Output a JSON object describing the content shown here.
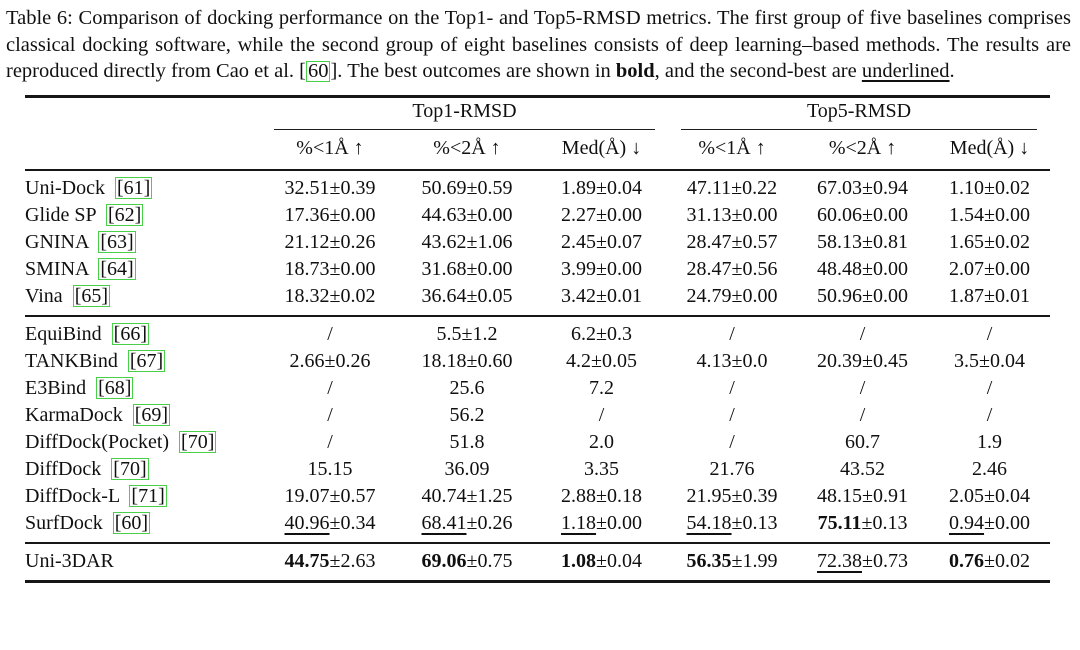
{
  "caption": {
    "part1": "Table 6: Comparison of docking performance on the Top1- and Top5-RMSD metrics. The first group of five baselines comprises classical docking software, while the second group of eight baselines consists of deep learning–based methods. The results are reproduced directly from Cao et al. [",
    "cite": "60",
    "part2": "]. The best outcomes are shown in ",
    "bold_text": "bold",
    "part3": ", and the second-best are ",
    "underline_text": "underlined",
    "part4": "."
  },
  "table": {
    "header": {
      "top1_label": "Top1-RMSD",
      "top5_label": "Top5-RMSD",
      "columns": [
        "%<1Å ↑",
        "%<2Å ↑",
        "Med(Å) ↓",
        "%<1Å ↑",
        "%<2Å ↑",
        "Med(Å) ↓"
      ]
    },
    "groups": [
      {
        "rows": [
          {
            "method": "Uni-Dock",
            "cite": "[61]",
            "cells": [
              {
                "v": "32.51",
                "pm": "±0.39"
              },
              {
                "v": "50.69",
                "pm": "±0.59"
              },
              {
                "v": "1.89",
                "pm": "±0.04"
              },
              {
                "v": "47.11",
                "pm": "±0.22"
              },
              {
                "v": "67.03",
                "pm": "±0.94"
              },
              {
                "v": "1.10",
                "pm": "±0.02"
              }
            ]
          },
          {
            "method": "Glide SP",
            "cite": "[62]",
            "cells": [
              {
                "v": "17.36",
                "pm": "±0.00"
              },
              {
                "v": "44.63",
                "pm": "±0.00"
              },
              {
                "v": "2.27",
                "pm": "±0.00"
              },
              {
                "v": "31.13",
                "pm": "±0.00"
              },
              {
                "v": "60.06",
                "pm": "±0.00"
              },
              {
                "v": "1.54",
                "pm": "±0.00"
              }
            ]
          },
          {
            "method": "GNINA",
            "cite": "[63]",
            "cells": [
              {
                "v": "21.12",
                "pm": "±0.26"
              },
              {
                "v": "43.62",
                "pm": "±1.06"
              },
              {
                "v": "2.45",
                "pm": "±0.07"
              },
              {
                "v": "28.47",
                "pm": "±0.57"
              },
              {
                "v": "58.13",
                "pm": "±0.81"
              },
              {
                "v": "1.65",
                "pm": "±0.02"
              }
            ]
          },
          {
            "method": "SMINA",
            "cite": "[64]",
            "cells": [
              {
                "v": "18.73",
                "pm": "±0.00"
              },
              {
                "v": "31.68",
                "pm": "±0.00"
              },
              {
                "v": "3.99",
                "pm": "±0.00"
              },
              {
                "v": "28.47",
                "pm": "±0.56"
              },
              {
                "v": "48.48",
                "pm": "±0.00"
              },
              {
                "v": "2.07",
                "pm": "±0.00"
              }
            ]
          },
          {
            "method": "Vina",
            "cite": "[65]",
            "cells": [
              {
                "v": "18.32",
                "pm": "±0.02"
              },
              {
                "v": "36.64",
                "pm": "±0.05"
              },
              {
                "v": "3.42",
                "pm": "±0.01"
              },
              {
                "v": "24.79",
                "pm": "±0.00"
              },
              {
                "v": "50.96",
                "pm": "±0.00"
              },
              {
                "v": "1.87",
                "pm": "±0.01"
              }
            ]
          }
        ]
      },
      {
        "rows": [
          {
            "method": "EquiBind",
            "cite": "[66]",
            "cells": [
              {
                "v": "/"
              },
              {
                "v": "5.5",
                "pm": "±1.2"
              },
              {
                "v": "6.2",
                "pm": "±0.3"
              },
              {
                "v": "/"
              },
              {
                "v": "/"
              },
              {
                "v": "/"
              }
            ]
          },
          {
            "method": "TANKBind",
            "cite": "[67]",
            "cells": [
              {
                "v": "2.66",
                "pm": "±0.26"
              },
              {
                "v": "18.18",
                "pm": "±0.60"
              },
              {
                "v": "4.2",
                "pm": "±0.05"
              },
              {
                "v": "4.13",
                "pm": "±0.0"
              },
              {
                "v": "20.39",
                "pm": "±0.45"
              },
              {
                "v": "3.5",
                "pm": "±0.04"
              }
            ]
          },
          {
            "method": "E3Bind",
            "cite": "[68]",
            "cells": [
              {
                "v": "/"
              },
              {
                "v": "25.6"
              },
              {
                "v": "7.2"
              },
              {
                "v": "/"
              },
              {
                "v": "/"
              },
              {
                "v": "/"
              }
            ]
          },
          {
            "method": "KarmaDock",
            "cite": "[69]",
            "cells": [
              {
                "v": "/"
              },
              {
                "v": "56.2"
              },
              {
                "v": "/"
              },
              {
                "v": "/"
              },
              {
                "v": "/"
              },
              {
                "v": "/"
              }
            ]
          },
          {
            "method": "DiffDock(Pocket)",
            "cite": "[70]",
            "cells": [
              {
                "v": "/"
              },
              {
                "v": "51.8"
              },
              {
                "v": "2.0"
              },
              {
                "v": "/"
              },
              {
                "v": "60.7"
              },
              {
                "v": "1.9"
              }
            ]
          },
          {
            "method": "DiffDock",
            "cite": "[70]",
            "cells": [
              {
                "v": "15.15"
              },
              {
                "v": "36.09"
              },
              {
                "v": "3.35"
              },
              {
                "v": "21.76"
              },
              {
                "v": "43.52"
              },
              {
                "v": "2.46"
              }
            ]
          },
          {
            "method": "DiffDock-L",
            "cite": "[71]",
            "cells": [
              {
                "v": "19.07",
                "pm": "±0.57"
              },
              {
                "v": "40.74",
                "pm": "±1.25"
              },
              {
                "v": "2.88",
                "pm": "±0.18"
              },
              {
                "v": "21.95",
                "pm": "±0.39"
              },
              {
                "v": "48.15",
                "pm": "±0.91"
              },
              {
                "v": "2.05",
                "pm": "±0.04"
              }
            ]
          },
          {
            "method": "SurfDock",
            "cite": "[60]",
            "cells": [
              {
                "v": "40.96",
                "pm": "±0.34",
                "s": "u"
              },
              {
                "v": "68.41",
                "pm": "±0.26",
                "s": "u"
              },
              {
                "v": "1.18",
                "pm": "±0.00",
                "s": "u"
              },
              {
                "v": "54.18",
                "pm": "±0.13",
                "s": "u"
              },
              {
                "v": "75.11",
                "pm": "±0.13",
                "s": "b"
              },
              {
                "v": "0.94",
                "pm": "±0.00",
                "s": "u"
              }
            ]
          }
        ]
      },
      {
        "rows": [
          {
            "method": "Uni-3DAR",
            "cite": null,
            "cells": [
              {
                "v": "44.75",
                "pm": "±2.63",
                "s": "b"
              },
              {
                "v": "69.06",
                "pm": "±0.75",
                "s": "b"
              },
              {
                "v": "1.08",
                "pm": "±0.04",
                "s": "b"
              },
              {
                "v": "56.35",
                "pm": "±1.99",
                "s": "b"
              },
              {
                "v": "72.38",
                "pm": "±0.73",
                "s": "u"
              },
              {
                "v": "0.76",
                "pm": "±0.02",
                "s": "b"
              }
            ]
          }
        ]
      }
    ]
  },
  "colors": {
    "citation_border": "#49d049",
    "rule": "#161616",
    "text": "#101010",
    "background": "#ffffff"
  }
}
